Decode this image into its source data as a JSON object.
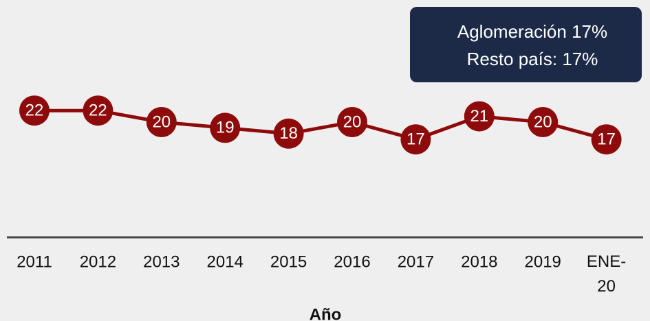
{
  "chart_data": {
    "type": "line",
    "categories": [
      "2011",
      "2012",
      "2013",
      "2014",
      "2015",
      "2016",
      "2017",
      "2018",
      "2019",
      "ENE-20"
    ],
    "values": [
      22,
      22,
      20,
      19,
      18,
      20,
      17,
      21,
      20,
      17
    ],
    "color": "#8e0b0b",
    "ylim": [
      0,
      30
    ],
    "x_label": "Año",
    "annotation": [
      "Aglomeración 17%",
      "Resto país: 17%"
    ]
  }
}
